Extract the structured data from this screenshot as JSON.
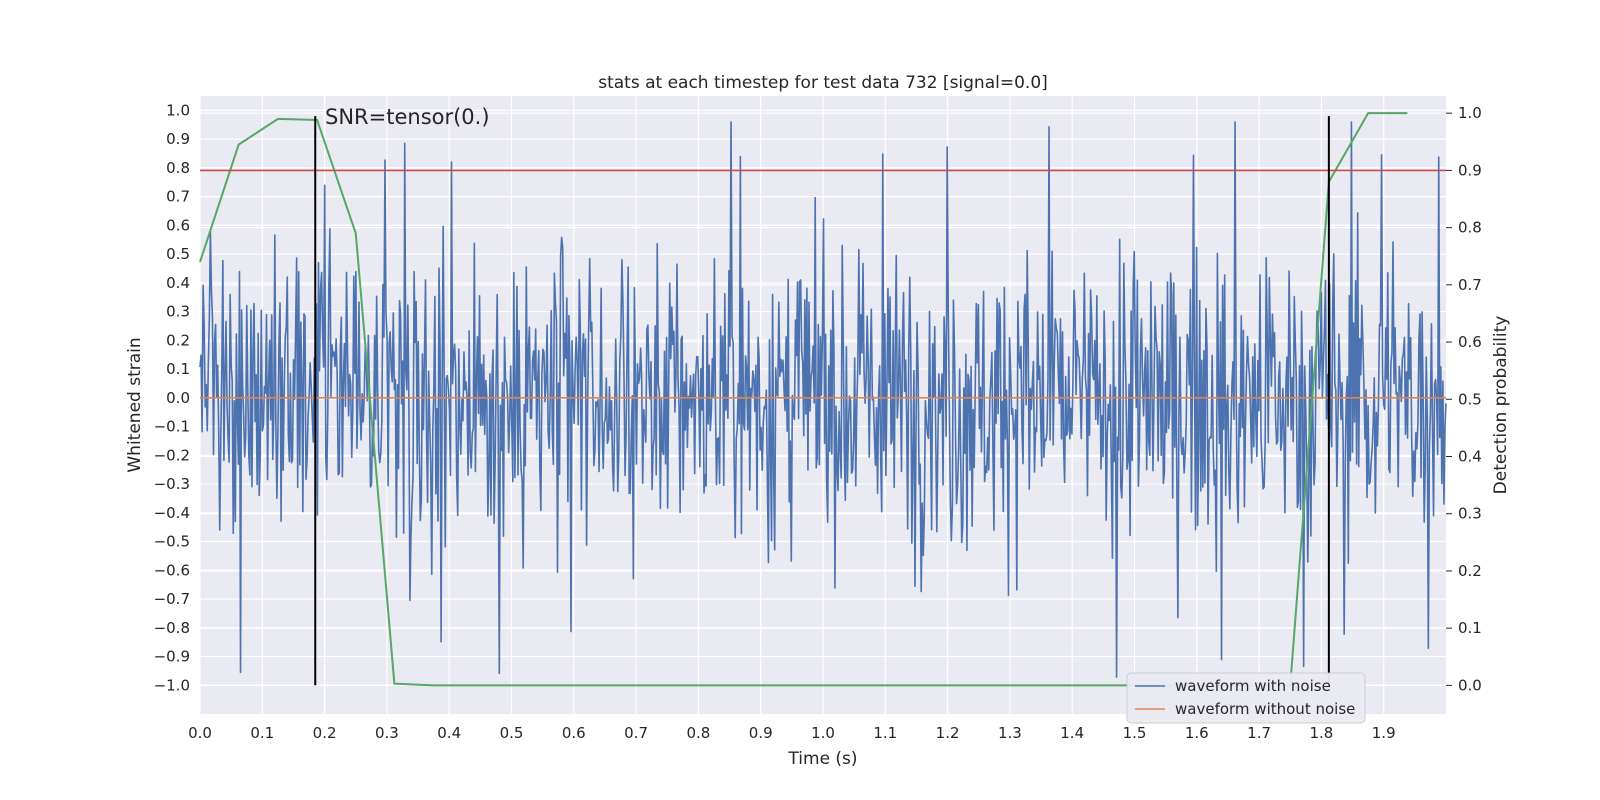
{
  "chart_data": {
    "type": "line",
    "title": "stats at each timestep for test data 732 [signal=0.0]",
    "xlabel": "Time (s)",
    "ylabel": "Whitened strain",
    "y2label": "Detection probability",
    "xlim": [
      0.0,
      2.0
    ],
    "ylim": [
      -1.1,
      1.05
    ],
    "y2lim": [
      -0.05,
      1.03
    ],
    "xticks": [
      "0.0",
      "0.1",
      "0.2",
      "0.3",
      "0.4",
      "0.5",
      "0.6",
      "0.7",
      "0.8",
      "0.9",
      "1.0",
      "1.1",
      "1.2",
      "1.3",
      "1.4",
      "1.5",
      "1.6",
      "1.7",
      "1.8",
      "1.9"
    ],
    "yticks": [
      "1.0",
      "0.9",
      "0.8",
      "0.7",
      "0.6",
      "0.5",
      "0.4",
      "0.3",
      "0.2",
      "0.1",
      "0.0",
      "-0.1",
      "-0.2",
      "-0.3",
      "-0.4",
      "-0.5",
      "-0.6",
      "-0.7",
      "-0.8",
      "-0.9",
      "-1.0"
    ],
    "y2ticks": [
      "1.0",
      "0.9",
      "0.8",
      "0.7",
      "0.6",
      "0.5",
      "0.4",
      "0.3",
      "0.2",
      "0.1",
      "0.0"
    ],
    "grid": true,
    "legend_position": "bottom-right",
    "annotation": "SNR=tensor(0.)",
    "series": [
      {
        "name": "waveform with noise",
        "color": "#4c72b0",
        "axis": "left",
        "kind": "noise",
        "amplitude_range": [
          -1.0,
          0.96
        ],
        "samples": 1200
      },
      {
        "name": "waveform without noise",
        "color": "#dd8452",
        "axis": "left",
        "x": [
          0.0,
          2.0
        ],
        "y": [
          0.0,
          0.0
        ]
      },
      {
        "name": "detection probability",
        "color": "#55a868",
        "axis": "right",
        "x": [
          0.0,
          0.062,
          0.125,
          0.188,
          0.25,
          0.312,
          0.375,
          0.438,
          0.5,
          0.562,
          0.625,
          0.688,
          0.75,
          0.812,
          0.875,
          0.938,
          1.0,
          1.062,
          1.125,
          1.188,
          1.25,
          1.312,
          1.375,
          1.438,
          1.5,
          1.562,
          1.625,
          1.688,
          1.75,
          1.812,
          1.875,
          1.938
        ],
        "y": [
          0.74,
          0.945,
          0.99,
          0.988,
          0.79,
          0.003,
          0.0,
          0.0,
          0.0,
          0.0,
          0.0,
          0.0,
          0.0,
          0.0,
          0.0,
          0.0,
          0.0,
          0.0,
          0.0,
          0.0,
          0.0,
          0.0,
          0.0,
          0.0,
          0.0,
          0.0,
          0.0,
          0.0,
          0.0,
          0.88,
          1.0,
          1.0
        ]
      }
    ],
    "hlines": [
      {
        "axis": "right",
        "value": 0.9,
        "color": "#c44e52"
      }
    ],
    "vlines": [
      {
        "x": 0.185,
        "y_range": [
          -1.0,
          0.98
        ],
        "color": "#000000"
      },
      {
        "x": 1.812,
        "y_range": [
          -1.0,
          0.98
        ],
        "color": "#000000"
      }
    ]
  }
}
